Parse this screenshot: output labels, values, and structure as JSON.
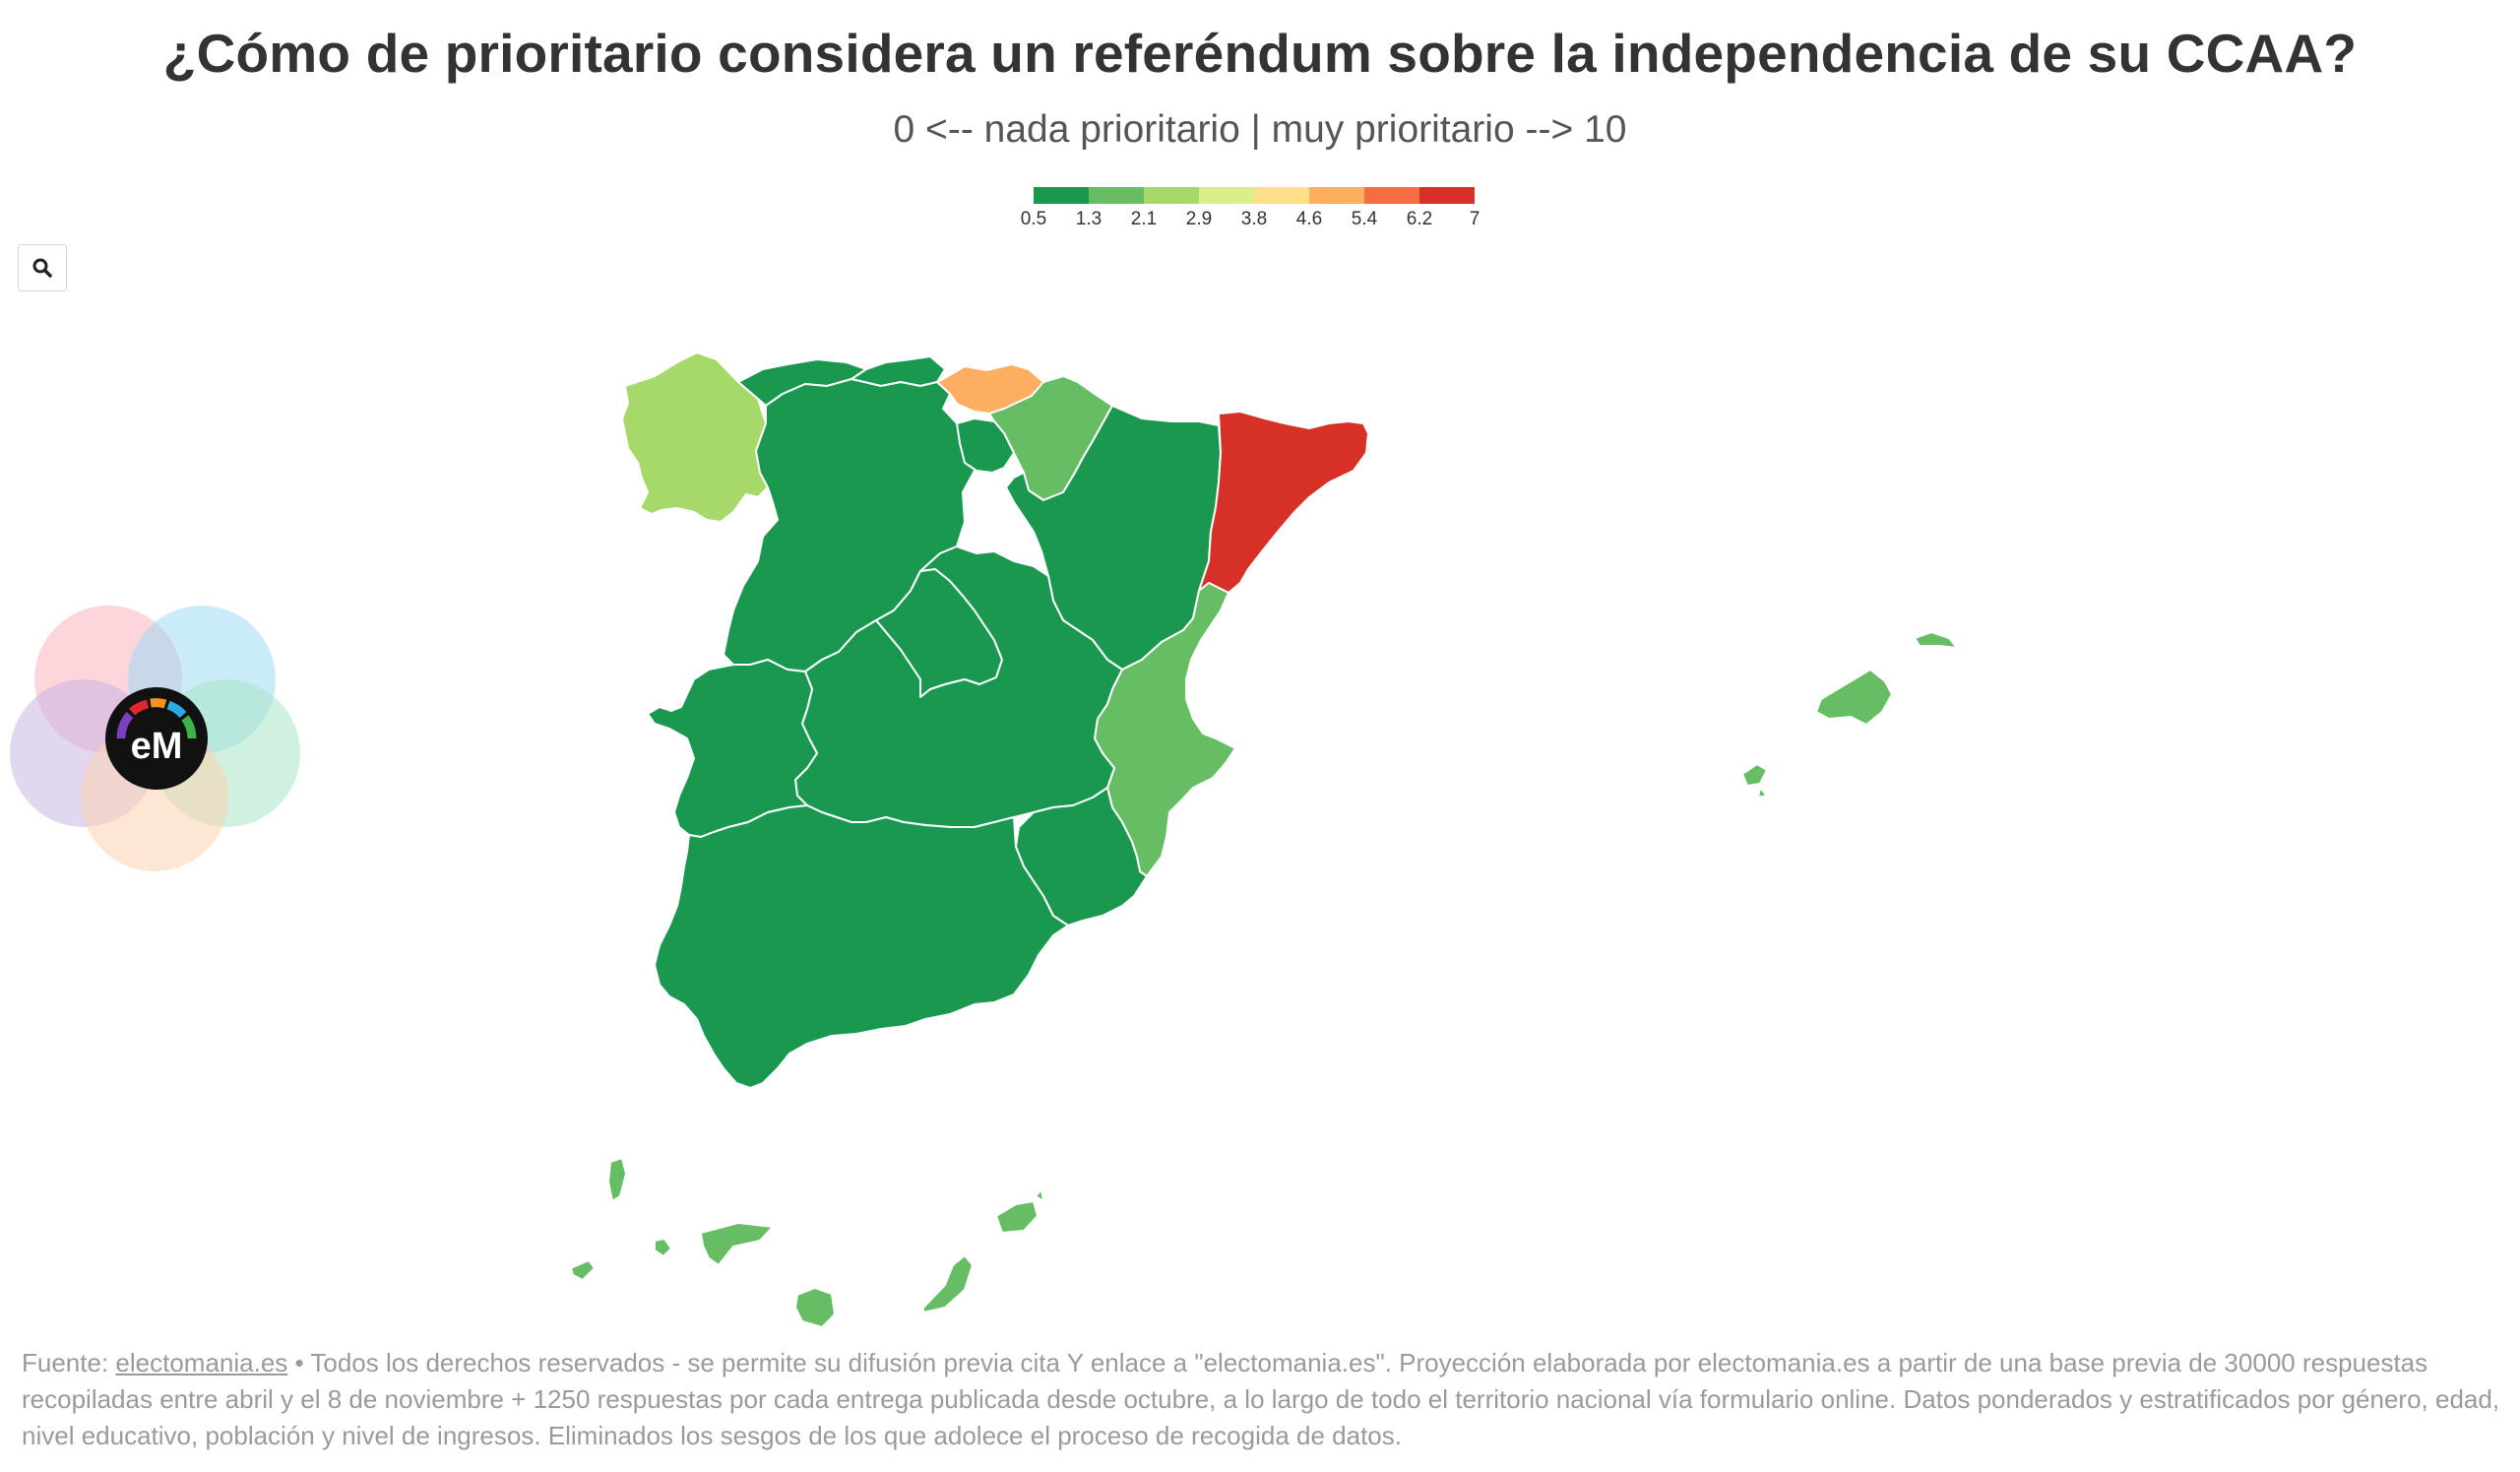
{
  "header": {
    "title": "¿Cómo de prioritario considera un referéndum sobre la independencia de su CCAA?",
    "subtitle": "0 <-- nada prioritario | muy prioritario --> 10"
  },
  "legend": {
    "ticks": [
      "0.5",
      "1.3",
      "2.1",
      "2.9",
      "3.8",
      "4.6",
      "5.4",
      "6.2",
      "7"
    ],
    "colors": [
      "#1a9850",
      "#66bd63",
      "#a6d96a",
      "#d9ef8b",
      "#fee08b",
      "#fdae61",
      "#f46d43",
      "#d73027"
    ]
  },
  "toolbar": {
    "zoom_icon": "search-icon"
  },
  "logo": {
    "text": "eM"
  },
  "map": {
    "regions": [
      {
        "name": "Galicia",
        "color": "#a6d96a"
      },
      {
        "name": "Asturias",
        "color": "#1a9850"
      },
      {
        "name": "Cantabria",
        "color": "#1a9850"
      },
      {
        "name": "País Vasco",
        "color": "#fdae61"
      },
      {
        "name": "Navarra",
        "color": "#66bd63"
      },
      {
        "name": "La Rioja",
        "color": "#1a9850"
      },
      {
        "name": "Aragón",
        "color": "#1a9850"
      },
      {
        "name": "Cataluña",
        "color": "#d73027"
      },
      {
        "name": "Castilla y León",
        "color": "#1a9850"
      },
      {
        "name": "Madrid",
        "color": "#1a9850"
      },
      {
        "name": "Castilla-La Mancha",
        "color": "#1a9850"
      },
      {
        "name": "Extremadura",
        "color": "#1a9850"
      },
      {
        "name": "Comunidad Valenciana",
        "color": "#66bd63"
      },
      {
        "name": "Región de Murcia",
        "color": "#1a9850"
      },
      {
        "name": "Andalucía",
        "color": "#1a9850"
      },
      {
        "name": "Islas Baleares",
        "color": "#66bd63"
      },
      {
        "name": "Canarias",
        "color": "#66bd63"
      }
    ]
  },
  "footer": {
    "source_label": "Fuente:",
    "source_link": "electomania.es",
    "text": "• Todos los derechos reservados - se permite su difusión previa cita Y enlace a \"electomania.es\". Proyección elaborada por electomania.es a partir de una base previa de 30000 respuestas recopiladas entre abril y el 8 de noviembre + 1250 respuestas por cada entrega publicada desde octubre, a lo largo de todo el territorio nacional vía formulario online. Datos ponderados y estratificados por género, edad, nivel educativo, población y nivel de ingresos. Eliminados los sesgos de los que adolece el proceso de recogida de datos."
  }
}
